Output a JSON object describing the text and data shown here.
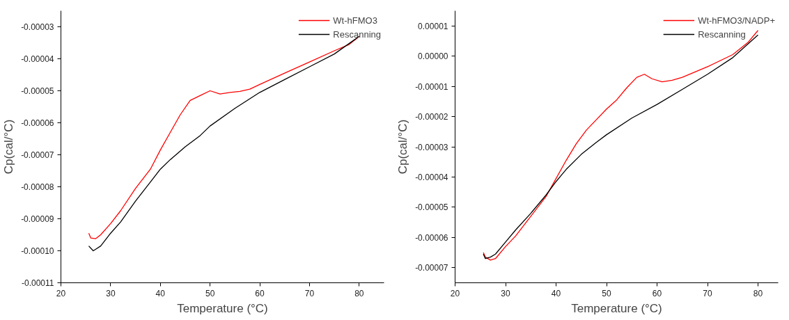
{
  "chart_data": [
    {
      "type": "line",
      "xlabel": "Temperature (°C)",
      "ylabel": "Cp(cal/°C)",
      "xlim": [
        20,
        85
      ],
      "ylim": [
        -0.00011,
        -2.5e-05
      ],
      "xticks": [
        20,
        30,
        40,
        50,
        60,
        70,
        80
      ],
      "yticks": [
        {
          "value": -0.00011,
          "label": "-0.00011"
        },
        {
          "value": -0.0001,
          "label": "-0.00010"
        },
        {
          "value": -9e-05,
          "label": "-0.00009"
        },
        {
          "value": -8e-05,
          "label": "-0.00008"
        },
        {
          "value": -7e-05,
          "label": "-0.00007"
        },
        {
          "value": -6e-05,
          "label": "-0.00006"
        },
        {
          "value": -5e-05,
          "label": "-0.00005"
        },
        {
          "value": -4e-05,
          "label": "-0.00004"
        },
        {
          "value": -3e-05,
          "label": "-0.00003"
        }
      ],
      "grid": false,
      "legend": "top right",
      "marker": "none",
      "line_style": "solid",
      "series": [
        {
          "name": "Wt-hFMO3",
          "color": "#ff0000",
          "x": [
            25.6,
            26,
            27,
            28,
            30,
            32,
            35,
            38,
            40,
            42,
            44,
            46,
            48,
            50,
            52,
            54,
            56,
            58,
            60,
            65,
            70,
            75,
            78,
            80
          ],
          "values": [
            -9.45e-05,
            -9.6e-05,
            -9.62e-05,
            -9.5e-05,
            -9.15e-05,
            -8.75e-05,
            -8.05e-05,
            -7.45e-05,
            -6.85e-05,
            -6.3e-05,
            -5.75e-05,
            -5.3e-05,
            -5.15e-05,
            -5e-05,
            -5.1e-05,
            -5.05e-05,
            -5.02e-05,
            -4.95e-05,
            -4.8e-05,
            -4.45e-05,
            -4.1e-05,
            -3.75e-05,
            -3.55e-05,
            -3.3e-05
          ]
        },
        {
          "name": "Rescanning",
          "color": "#000000",
          "x": [
            25.6,
            26.5,
            27,
            28,
            30,
            32,
            35,
            38,
            40,
            42,
            45,
            48,
            50,
            55,
            60,
            65,
            70,
            75,
            80
          ],
          "values": [
            -9.85e-05,
            -0.0001,
            -9.95e-05,
            -9.85e-05,
            -9.45e-05,
            -9.1e-05,
            -8.45e-05,
            -7.85e-05,
            -7.45e-05,
            -7.15e-05,
            -6.75e-05,
            -6.4e-05,
            -6.1e-05,
            -5.55e-05,
            -5.05e-05,
            -4.65e-05,
            -4.25e-05,
            -3.85e-05,
            -3.3e-05
          ]
        }
      ]
    },
    {
      "type": "line",
      "xlabel": "Temperature (°C)",
      "ylabel": "Cp(cal/°C)",
      "xlim": [
        20,
        84
      ],
      "ylim": [
        -7.5e-05,
        1.5e-05
      ],
      "xticks": [
        20,
        30,
        40,
        50,
        60,
        70,
        80
      ],
      "yticks": [
        {
          "value": -7e-05,
          "label": "-0.00007"
        },
        {
          "value": -6e-05,
          "label": "-0.00006"
        },
        {
          "value": -5e-05,
          "label": "-0.00005"
        },
        {
          "value": -4e-05,
          "label": "-0.00004"
        },
        {
          "value": -3e-05,
          "label": "-0.00003"
        },
        {
          "value": -2e-05,
          "label": "-0.00002"
        },
        {
          "value": -1e-05,
          "label": "-0.00001"
        },
        {
          "value": 0,
          "label": "0.00000"
        },
        {
          "value": 1e-05,
          "label": "0.00001"
        }
      ],
      "grid": false,
      "legend": "top right",
      "marker": "none",
      "line_style": "solid",
      "series": [
        {
          "name": "Wt-hFMO3/NADP+",
          "color": "#ff0000",
          "x": [
            25.6,
            26,
            27,
            28,
            30,
            32,
            35,
            38,
            40,
            42,
            44,
            46,
            48,
            50,
            52,
            54,
            56,
            57.5,
            59,
            61,
            63,
            65,
            70,
            75,
            78,
            80
          ],
          "values": [
            -6.5e-05,
            -6.65e-05,
            -6.75e-05,
            -6.7e-05,
            -6.3e-05,
            -5.95e-05,
            -5.3e-05,
            -4.65e-05,
            -4.05e-05,
            -3.45e-05,
            -2.9e-05,
            -2.45e-05,
            -2.1e-05,
            -1.75e-05,
            -1.45e-05,
            -1.05e-05,
            -7e-06,
            -6e-06,
            -7.5e-06,
            -8.5e-06,
            -8e-06,
            -7e-06,
            -3.5e-06,
            5e-07,
            4.5e-06,
            8.5e-06
          ]
        },
        {
          "name": "Rescanning",
          "color": "#000000",
          "x": [
            25.6,
            26,
            27,
            28,
            30,
            32,
            35,
            38,
            40,
            42,
            45,
            48,
            50,
            55,
            60,
            65,
            70,
            75,
            80
          ],
          "values": [
            -6.55e-05,
            -6.7e-05,
            -6.65e-05,
            -6.55e-05,
            -6.15e-05,
            -5.75e-05,
            -5.2e-05,
            -4.6e-05,
            -4.15e-05,
            -3.75e-05,
            -3.25e-05,
            -2.85e-05,
            -2.6e-05,
            -2.05e-05,
            -1.6e-05,
            -1.1e-05,
            -6e-06,
            -5e-07,
            7e-06
          ]
        }
      ]
    }
  ]
}
